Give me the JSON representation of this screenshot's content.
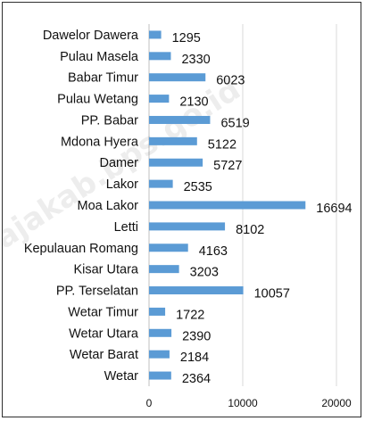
{
  "chart_data": {
    "type": "bar",
    "orientation": "horizontal",
    "categories": [
      "Dawelor Dawera",
      "Pulau Masela",
      "Babar Timur",
      "Pulau Wetang",
      "PP. Babar",
      "Mdona Hyera",
      "Damer",
      "Lakor",
      "Moa Lakor",
      "Letti",
      "Kepulauan Romang",
      "Kisar Utara",
      "PP. Terselatan",
      "Wetar Timur",
      "Wetar Utara",
      "Wetar Barat",
      "Wetar"
    ],
    "values": [
      1295,
      2330,
      6023,
      2130,
      6519,
      5122,
      5727,
      2535,
      16694,
      8102,
      4163,
      3203,
      10057,
      1722,
      2390,
      2184,
      2364
    ],
    "value_labels": [
      "1295",
      "2330",
      "6023",
      "2130",
      "6519",
      "5122",
      "5727",
      "2535",
      "16694",
      "8102",
      "4163",
      "3203",
      "10057",
      "1722",
      "2390",
      "2184",
      "2364"
    ],
    "x_ticks": [
      0,
      10000,
      20000
    ],
    "x_tick_labels": [
      "0",
      "10000",
      "20000"
    ],
    "xlim": [
      0,
      20000
    ],
    "grid": "vertical",
    "legend": "none",
    "title": "",
    "xlabel": "",
    "ylabel": "",
    "colors": {
      "bar": "#5b9bd5",
      "grid": "#d9d9d9",
      "axis": "#bfbfbf",
      "text": "#111111"
    }
  },
  "watermark": "ajakab.bps.go.id"
}
